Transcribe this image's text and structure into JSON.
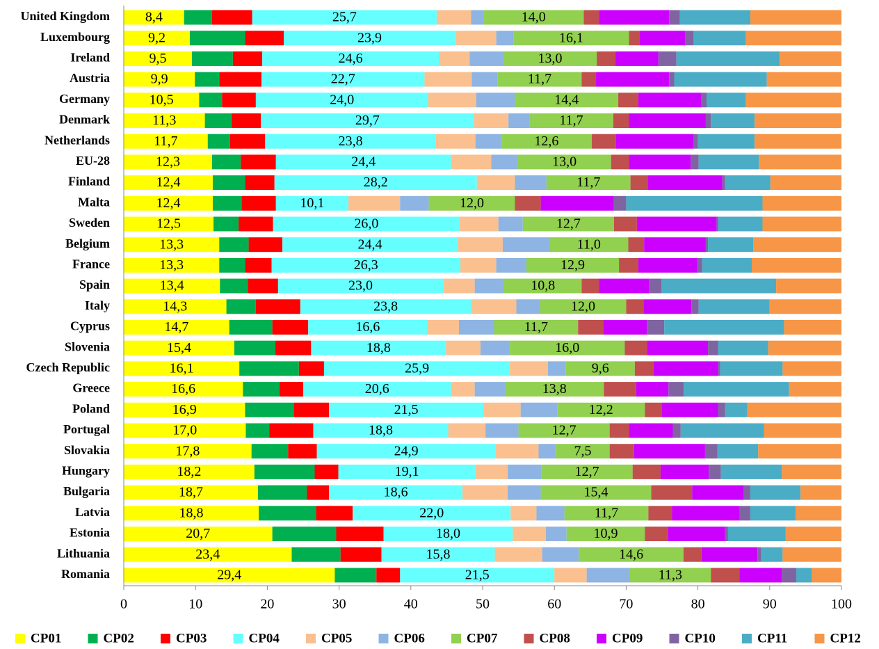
{
  "chart_data": {
    "type": "stacked-bar-horizontal",
    "categories": [
      "United Kingdom",
      "Luxembourg",
      "Ireland",
      "Austria",
      "Germany",
      "Denmark",
      "Netherlands",
      "EU-28",
      "Finland",
      "Malta",
      "Sweden",
      "Belgium",
      "France",
      "Spain",
      "Italy",
      "Cyprus",
      "Slovenia",
      "Czech Republic",
      "Greece",
      "Poland",
      "Portugal",
      "Slovakia",
      "Hungary",
      "Bulgaria",
      "Latvia",
      "Estonia",
      "Lithuania",
      "Romania"
    ],
    "xlim": [
      0,
      100
    ],
    "xticks": [
      0,
      10,
      20,
      30,
      40,
      50,
      60,
      70,
      80,
      90,
      100
    ],
    "series": [
      {
        "name": "CP01",
        "color": "#ffff00",
        "values": [
          8.4,
          9.2,
          9.5,
          9.9,
          10.5,
          11.3,
          11.7,
          12.3,
          12.4,
          12.4,
          12.5,
          13.3,
          13.3,
          13.4,
          14.3,
          14.7,
          15.4,
          16.1,
          16.6,
          16.9,
          17.0,
          17.8,
          18.2,
          18.7,
          18.8,
          20.7,
          23.4,
          29.4
        ],
        "value_labels": [
          "8,4",
          "9,2",
          "9,5",
          "9,9",
          "10,5",
          "11,3",
          "11,7",
          "12,3",
          "12,4",
          "12,4",
          "12,5",
          "13,3",
          "13,3",
          "13,4",
          "14,3",
          "14,7",
          "15,4",
          "16,1",
          "16,6",
          "16,9",
          "17,0",
          "17,8",
          "18,2",
          "18,7",
          "18,8",
          "20,7",
          "23,4",
          "29,4"
        ]
      },
      {
        "name": "CP02",
        "color": "#00b050",
        "values": [
          3.9,
          7.7,
          5.7,
          3.4,
          3.2,
          3.7,
          3.1,
          4.0,
          4.5,
          4.0,
          3.5,
          4.1,
          3.6,
          3.9,
          4.1,
          6.0,
          5.7,
          8.3,
          5.1,
          6.8,
          3.3,
          5.1,
          8.4,
          6.8,
          8.0,
          8.9,
          6.8,
          5.8
        ]
      },
      {
        "name": "CP03",
        "color": "#ff0000",
        "values": [
          5.6,
          5.4,
          4.1,
          5.9,
          4.7,
          4.1,
          4.9,
          4.9,
          4.1,
          4.8,
          4.8,
          4.7,
          3.7,
          4.2,
          6.2,
          5.0,
          5.0,
          3.5,
          3.3,
          4.9,
          6.1,
          4.0,
          3.3,
          3.1,
          5.1,
          6.6,
          5.7,
          3.3
        ]
      },
      {
        "name": "CP04",
        "color": "#66ffff",
        "values": [
          25.7,
          23.9,
          24.6,
          22.7,
          24.0,
          29.7,
          23.8,
          24.4,
          28.2,
          10.1,
          26.0,
          24.4,
          26.3,
          23.0,
          23.8,
          16.6,
          18.8,
          25.9,
          20.6,
          21.5,
          18.8,
          24.9,
          19.1,
          18.6,
          22.0,
          18.0,
          15.8,
          21.5
        ],
        "value_labels": [
          "25,7",
          "23,9",
          "24,6",
          "22,7",
          "24,0",
          "29,7",
          "23,8",
          "24,4",
          "28,2",
          "10,1",
          "26,0",
          "24,4",
          "26,3",
          "23,0",
          "23,8",
          "16,6",
          "18,8",
          "25,9",
          "20,6",
          "21,5",
          "18,8",
          "24,9",
          "19,1",
          "18,6",
          "22,0",
          "18,0",
          "15,8",
          "21,5"
        ]
      },
      {
        "name": "CP05",
        "color": "#fac090",
        "values": [
          4.8,
          5.7,
          4.3,
          6.6,
          6.7,
          4.8,
          5.5,
          5.6,
          5.3,
          7.2,
          5.4,
          6.3,
          5.0,
          4.4,
          6.3,
          4.4,
          4.8,
          5.3,
          3.3,
          5.2,
          5.2,
          6.0,
          4.5,
          6.3,
          3.6,
          4.6,
          6.6,
          4.5
        ]
      },
      {
        "name": "CP06",
        "color": "#8db4e2",
        "values": [
          1.7,
          2.4,
          4.7,
          3.6,
          5.4,
          2.9,
          3.6,
          3.7,
          4.4,
          4.0,
          3.4,
          6.5,
          4.2,
          4.1,
          3.3,
          4.9,
          4.1,
          2.5,
          4.2,
          5.1,
          4.6,
          2.4,
          4.7,
          4.6,
          3.9,
          2.9,
          5.1,
          6.0
        ]
      },
      {
        "name": "CP07",
        "color": "#92d050",
        "values": [
          14.0,
          16.1,
          13.0,
          11.7,
          14.4,
          11.7,
          12.6,
          13.0,
          11.7,
          12.0,
          12.7,
          11.0,
          12.9,
          10.8,
          12.0,
          11.7,
          16.0,
          9.6,
          13.8,
          12.2,
          12.7,
          7.5,
          12.7,
          15.4,
          11.7,
          10.9,
          14.6,
          11.3
        ],
        "value_labels": [
          "14,0",
          "16,1",
          "13,0",
          "11,7",
          "14,4",
          "11,7",
          "12,6",
          "13,0",
          "11,7",
          "12,0",
          "12,7",
          "11,0",
          "12,9",
          "10,8",
          "12,0",
          "11,7",
          "16,0",
          "9,6",
          "13,8",
          "12,2",
          "12,7",
          "7,5",
          "12,7",
          "15,4",
          "11,7",
          "10,9",
          "14,6",
          "11,3"
        ]
      },
      {
        "name": "CP08",
        "color": "#c0504d",
        "values": [
          2.1,
          1.5,
          2.6,
          2.0,
          2.8,
          2.2,
          3.4,
          2.5,
          2.4,
          3.6,
          3.2,
          2.2,
          2.7,
          2.4,
          2.4,
          3.5,
          3.1,
          2.6,
          4.5,
          2.4,
          2.7,
          3.4,
          3.9,
          5.7,
          3.3,
          3.2,
          2.5,
          4.0
        ]
      },
      {
        "name": "CP09",
        "color": "#cc00ff",
        "values": [
          9.8,
          6.3,
          6.0,
          10.2,
          8.8,
          10.7,
          10.8,
          8.6,
          10.4,
          10.2,
          11.1,
          8.6,
          8.2,
          7.0,
          6.7,
          6.1,
          8.5,
          9.0,
          4.5,
          7.8,
          6.1,
          9.9,
          6.7,
          7.2,
          9.4,
          8.0,
          7.8,
          5.9
        ]
      },
      {
        "name": "CP10",
        "color": "#8064a2",
        "values": [
          1.5,
          1.2,
          2.5,
          0.7,
          0.7,
          0.7,
          0.6,
          1.1,
          0.4,
          1.7,
          0.2,
          0.3,
          0.7,
          1.7,
          1.0,
          2.4,
          1.4,
          0.3,
          2.1,
          1.0,
          1.1,
          1.7,
          1.7,
          0.9,
          1.5,
          0.4,
          0.5,
          2.0
        ]
      },
      {
        "name": "CP11",
        "color": "#4bacc6",
        "values": [
          9.8,
          7.3,
          14.4,
          12.9,
          5.5,
          6.1,
          7.9,
          8.4,
          6.3,
          19.0,
          6.2,
          6.3,
          6.9,
          16.0,
          9.9,
          16.7,
          7.0,
          8.7,
          14.7,
          3.1,
          11.6,
          5.7,
          8.5,
          7.0,
          6.3,
          8.0,
          3.0,
          2.2
        ]
      },
      {
        "name": "CP12",
        "color": "#f79646",
        "values": [
          12.7,
          13.3,
          8.6,
          10.4,
          13.3,
          12.1,
          12.1,
          11.5,
          9.9,
          11.0,
          11.0,
          12.3,
          12.5,
          9.1,
          10.0,
          8.0,
          10.2,
          8.2,
          7.3,
          13.1,
          10.8,
          11.6,
          8.3,
          5.7,
          6.4,
          7.8,
          8.2,
          4.1
        ]
      }
    ]
  }
}
